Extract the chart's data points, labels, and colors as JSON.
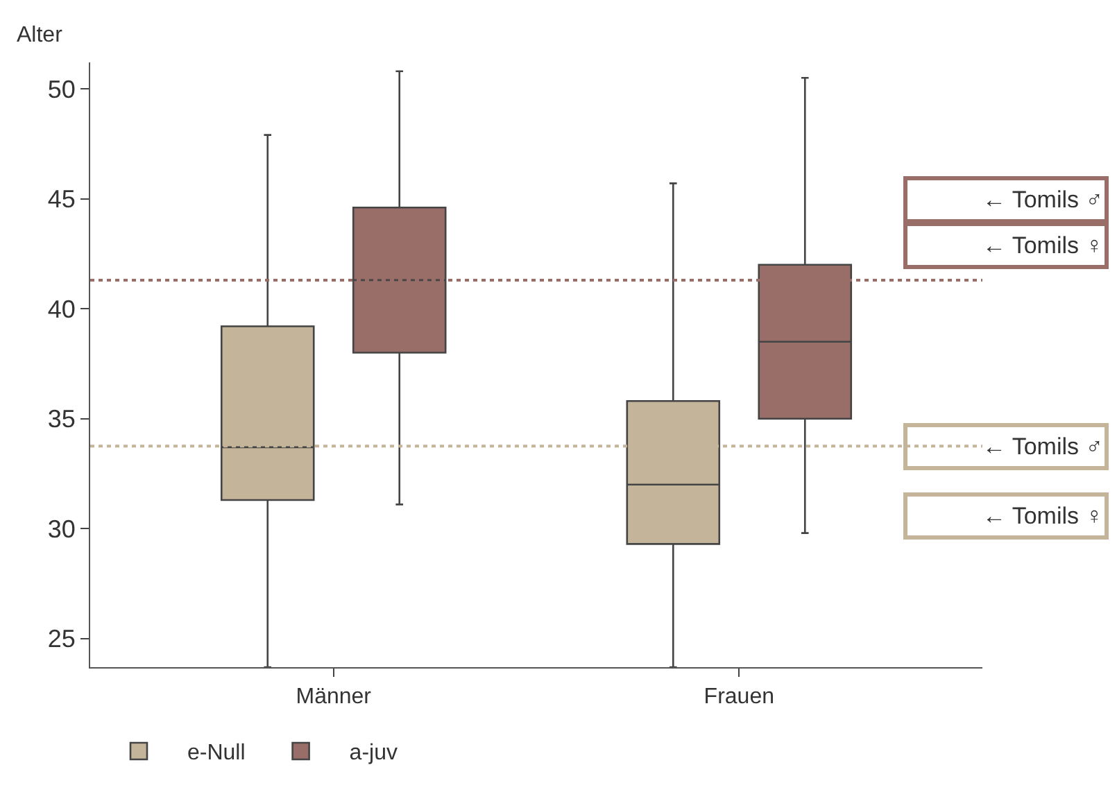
{
  "chart_data": {
    "type": "box",
    "ylabel": "Alter",
    "categories": [
      "Männer",
      "Frauen"
    ],
    "series": [
      {
        "name": "e-Null",
        "color": "#c4b49a",
        "boxes": [
          {
            "low": 23.7,
            "q1": 31.3,
            "median": 33.7,
            "q3": 39.2,
            "high": 47.9
          },
          {
            "low": 23.7,
            "q1": 29.3,
            "median": 32.0,
            "q3": 35.8,
            "high": 45.7
          }
        ]
      },
      {
        "name": "a-juv",
        "color": "#9a6e68",
        "boxes": [
          {
            "low": 31.1,
            "q1": 38.0,
            "median": 41.3,
            "q3": 44.6,
            "high": 50.8
          },
          {
            "low": 29.8,
            "q1": 35.0,
            "median": 38.5,
            "q3": 42.0,
            "high": 50.5
          }
        ]
      }
    ],
    "ylim": [
      23.7,
      51.2
    ],
    "yticks": [
      25,
      30,
      35,
      40,
      45,
      50
    ],
    "ref_lines": [
      {
        "axis": "y",
        "value": 41.3,
        "label": "← Tomils ♂",
        "color": "#9a6e68",
        "line_style": "dotted"
      },
      {
        "axis": "y",
        "value": 33.75,
        "label": "← Tomils ♂",
        "color": "#c4b49a",
        "line_style": "dotted"
      }
    ],
    "annotations": [
      "← Tomils ♀",
      "← Tomils ♀"
    ],
    "legend": "bottom left"
  }
}
